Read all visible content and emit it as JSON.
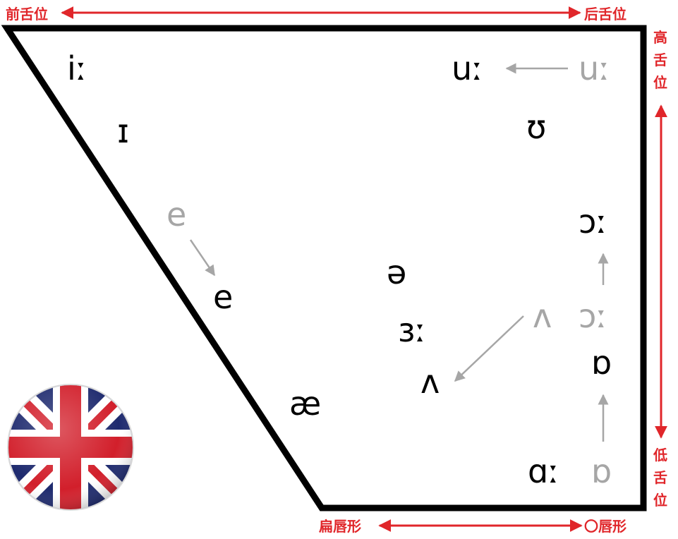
{
  "labels": {
    "front": "前舌位",
    "back": "后舌位",
    "high": [
      "高",
      "舌",
      "位"
    ],
    "low": [
      "低",
      "舌",
      "位"
    ],
    "unrounded": "扁唇形",
    "rounded": "〇唇形"
  },
  "vowels": {
    "i_long": "iː",
    "i_short": "ɪ",
    "e_old": "e",
    "e_new": "e",
    "ae": "æ",
    "schwa": "ə",
    "er_long": "ɜː",
    "wedge_new": "ʌ",
    "wedge_old": "ʌ",
    "u_long": "uː",
    "u_long_old": "uː",
    "u_short": "ʊ",
    "o_long": "ɔː",
    "o_long_old": "ɔː",
    "o_short": "ɒ",
    "a_long": "ɑː",
    "o_short_old": "ɒ"
  },
  "colors": {
    "accent_red": "#e0262a",
    "frame": "#000000",
    "old_vowel": "#a6a6a6",
    "arrow_gray": "#a6a6a6",
    "flag_blue": "#1e2a6e",
    "flag_red": "#d21f2b"
  },
  "flag": {
    "icon": "uk-flag-icon"
  }
}
